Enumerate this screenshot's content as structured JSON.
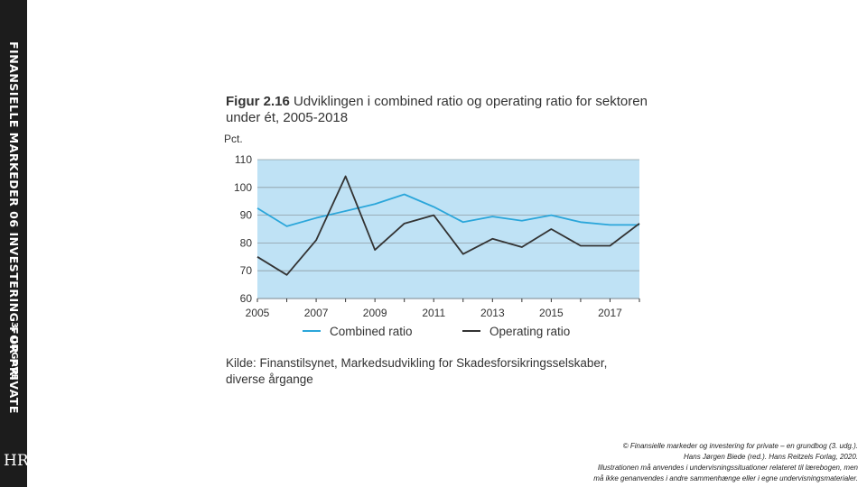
{
  "sidebar": {
    "series_label": "FINANSIELLE MARKEDER",
    "chapter": "06",
    "book_title": "INVESTERING FOR PRIVATE",
    "edition": "3. UDGAVE",
    "logo": "HR"
  },
  "figure": {
    "number": "Figur 2.16",
    "title": "Udviklingen i combined ratio og operating ratio for sektoren under ét, 2005-2018",
    "source": "Kilde: Finanstilsynet, Markedsudvikling for Skadesforsikringsselskaber, diverse årgange"
  },
  "credit": {
    "line1": "© Finansielle markeder og investering for private – en grundbog (3. udg.).",
    "line2": "Hans Jørgen Biede (red.). Hans Reitzels Forlag, 2020.",
    "line3": "Illustrationen må anvendes i undervisningssituationer relateret til lærebogen, men",
    "line4": "må ikke genanvendes i andre sammenhænge eller i egne undervisningsmaterialer."
  },
  "colors": {
    "plot_bg": "#bfe2f5",
    "combined": "#2ba6da",
    "operating": "#333333",
    "grid": "#8e9ba3",
    "sidebar": "#1c1c1c"
  },
  "chart_data": {
    "type": "line",
    "title": "Udviklingen i combined ratio og operating ratio for sektoren under ét, 2005-2018",
    "ylabel": "Pct.",
    "xlabel": "",
    "ylim": [
      60,
      110
    ],
    "yticks": [
      110,
      100,
      90,
      80,
      70,
      60
    ],
    "xticks": [
      "2005",
      "2007",
      "2009",
      "2011",
      "2013",
      "2015",
      "2017"
    ],
    "x": [
      2005,
      2006,
      2007,
      2008,
      2009,
      2010,
      2011,
      2012,
      2013,
      2014,
      2015,
      2016,
      2017,
      2018
    ],
    "series": [
      {
        "name": "Combined ratio",
        "values": [
          92.5,
          86,
          89,
          91.5,
          94,
          97.5,
          93,
          87.5,
          89.5,
          88,
          90,
          87.5,
          86.5,
          86.5
        ]
      },
      {
        "name": "Operating ratio",
        "values": [
          75,
          68.5,
          81,
          104,
          77.5,
          87,
          90,
          76,
          81.5,
          78.5,
          85,
          79,
          79,
          87
        ]
      }
    ],
    "legend": "bottom"
  }
}
